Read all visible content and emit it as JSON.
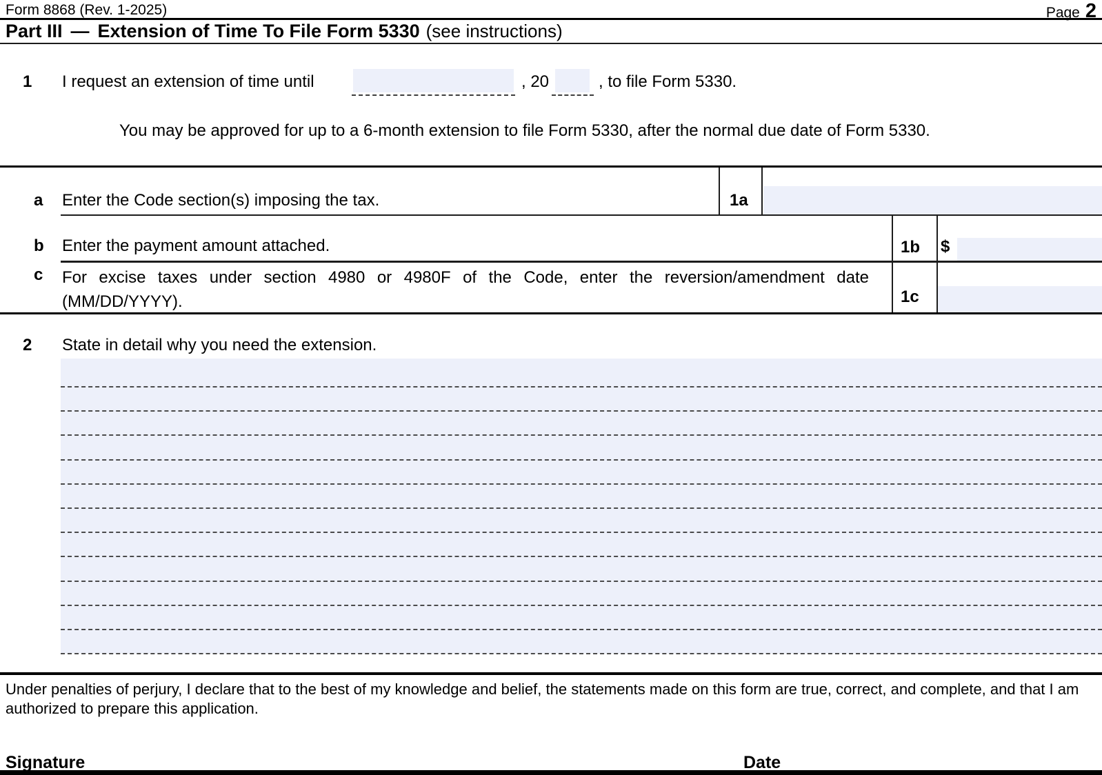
{
  "page_header": {
    "form_id": "Form 8868 (Rev. 1-2025)",
    "page_label": "Page",
    "page_number": "2"
  },
  "part3": {
    "part_label": "Part III",
    "dash": "—",
    "title": "Extension of Time To File Form 5330",
    "subtitle": "(see instructions)"
  },
  "line1": {
    "number": "1",
    "text_before": "I request an extension of time until",
    "date_value": "",
    "mid_text": ", 20",
    "year_value": "",
    "text_after": ", to file Form 5330.",
    "note": "You may be approved for up to a 6-month extension to file Form 5330, after the normal due date of Form 5330."
  },
  "line_a": {
    "letter": "a",
    "label": "Enter the Code section(s) imposing the tax.",
    "box_label": "1a",
    "value": ""
  },
  "line_b": {
    "letter": "b",
    "label": "Enter the payment amount attached.",
    "box_label": "1b",
    "currency_symbol": "$",
    "value": ""
  },
  "line_c": {
    "letter": "c",
    "label": "For excise taxes under section 4980 or 4980F of the Code, enter the reversion/amendment date (MM/DD/YYYY).",
    "box_label": "1c",
    "value": ""
  },
  "line2": {
    "number": "2",
    "label": "State in detail why you need the extension.",
    "value": "",
    "ruled_line_count": 12
  },
  "declaration": "Under penalties of perjury, I declare that to the best of my knowledge and belief, the statements made on this form are true, correct, and complete, and that I am authorized to prepare this application.",
  "signature_label": "Signature",
  "date_label": "Date",
  "colors": {
    "field_background": "#edf0fa",
    "line_color": "#1c1c1c"
  }
}
